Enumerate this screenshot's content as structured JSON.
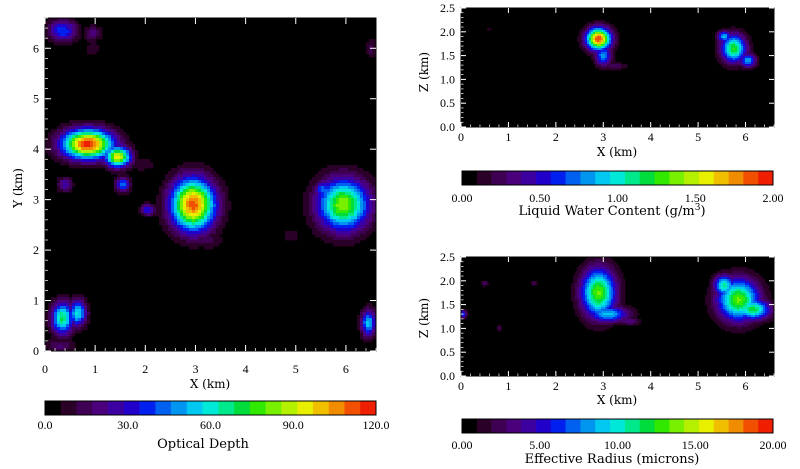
{
  "colormap": [
    "#000000",
    "#2a0028",
    "#3d0052",
    "#4a007a",
    "#3c00a0",
    "#2200cc",
    "#0020f0",
    "#0060f0",
    "#0096f0",
    "#00c8f0",
    "#00e8d8",
    "#00e88c",
    "#00dc3c",
    "#30e800",
    "#78f000",
    "#b4f000",
    "#e8f000",
    "#f0c000",
    "#f08c00",
    "#f05000",
    "#f01e00"
  ],
  "chart_data": [
    {
      "id": "optical_depth",
      "type": "heatmap",
      "xlabel": "X (km)",
      "ylabel": "Y (km)",
      "xlim": [
        0,
        6.6
      ],
      "ylim": [
        0,
        6.6
      ],
      "xticks": [
        "0",
        "1",
        "2",
        "3",
        "4",
        "5",
        "6"
      ],
      "yticks": [
        "0",
        "1",
        "2",
        "3",
        "4",
        "5",
        "6"
      ],
      "colorbar_label": "Optical Depth",
      "colorbar_range": [
        0,
        120
      ],
      "colorbar_ticks": [
        "0.0",
        "30.0",
        "60.0",
        "90.0",
        "120.0"
      ],
      "blobs": [
        {
          "x": 0.35,
          "y": 6.35,
          "sx": 0.2,
          "sy": 0.15,
          "v": 40
        },
        {
          "x": 0.95,
          "y": 6.3,
          "sx": 0.12,
          "sy": 0.1,
          "v": 22
        },
        {
          "x": 0.95,
          "y": 6.0,
          "sx": 0.1,
          "sy": 0.1,
          "v": 12
        },
        {
          "x": 0.85,
          "y": 4.1,
          "sx": 0.35,
          "sy": 0.2,
          "v": 118
        },
        {
          "x": 1.45,
          "y": 3.85,
          "sx": 0.18,
          "sy": 0.14,
          "v": 95
        },
        {
          "x": 1.55,
          "y": 3.3,
          "sx": 0.1,
          "sy": 0.1,
          "v": 45
        },
        {
          "x": 0.4,
          "y": 3.3,
          "sx": 0.1,
          "sy": 0.1,
          "v": 28
        },
        {
          "x": 2.95,
          "y": 2.9,
          "sx": 0.3,
          "sy": 0.35,
          "v": 112
        },
        {
          "x": 2.7,
          "y": 2.7,
          "sx": 0.18,
          "sy": 0.2,
          "v": 50
        },
        {
          "x": 2.05,
          "y": 2.8,
          "sx": 0.1,
          "sy": 0.08,
          "v": 35
        },
        {
          "x": 5.95,
          "y": 2.9,
          "sx": 0.35,
          "sy": 0.35,
          "v": 85
        },
        {
          "x": 5.55,
          "y": 3.2,
          "sx": 0.12,
          "sy": 0.12,
          "v": 45
        },
        {
          "x": 5.7,
          "y": 2.5,
          "sx": 0.18,
          "sy": 0.12,
          "v": 25
        },
        {
          "x": 0.35,
          "y": 0.65,
          "sx": 0.15,
          "sy": 0.22,
          "v": 70
        },
        {
          "x": 0.65,
          "y": 0.75,
          "sx": 0.12,
          "sy": 0.18,
          "v": 60
        },
        {
          "x": 0.3,
          "y": 0.1,
          "sx": 0.2,
          "sy": 0.1,
          "v": 18
        },
        {
          "x": 6.45,
          "y": 0.55,
          "sx": 0.1,
          "sy": 0.18,
          "v": 55
        },
        {
          "x": 6.5,
          "y": 6.0,
          "sx": 0.06,
          "sy": 0.15,
          "v": 14
        },
        {
          "x": 1.9,
          "y": 3.7,
          "sx": 0.25,
          "sy": 0.1,
          "v": 10
        },
        {
          "x": 3.25,
          "y": 2.2,
          "sx": 0.2,
          "sy": 0.12,
          "v": 14
        },
        {
          "x": 4.9,
          "y": 2.3,
          "sx": 0.15,
          "sy": 0.1,
          "v": 9
        }
      ]
    },
    {
      "id": "liquid_water_content",
      "type": "heatmap",
      "xlabel": "X (km)",
      "ylabel": "Z (km)",
      "xlim": [
        0,
        6.6
      ],
      "ylim": [
        0,
        2.5
      ],
      "xticks": [
        "0",
        "1",
        "2",
        "3",
        "4",
        "5",
        "6"
      ],
      "yticks": [
        "0.0",
        "0.5",
        "1.0",
        "1.5",
        "2.0",
        "2.5"
      ],
      "colorbar_label_prefix": "Liquid Water Content (g/m",
      "colorbar_label_sup": "3",
      "colorbar_label_suffix": ")",
      "colorbar_range": [
        0,
        2
      ],
      "colorbar_ticks": [
        "0.00",
        "0.50",
        "1.00",
        "1.50",
        "2.00"
      ],
      "blobs": [
        {
          "x": 2.9,
          "y": 1.85,
          "sx": 0.18,
          "sy": 0.16,
          "v": 1.9
        },
        {
          "x": 3.0,
          "y": 1.5,
          "sx": 0.12,
          "sy": 0.15,
          "v": 0.8
        },
        {
          "x": 3.25,
          "y": 1.28,
          "sx": 0.2,
          "sy": 0.05,
          "v": 0.25
        },
        {
          "x": 5.75,
          "y": 1.65,
          "sx": 0.18,
          "sy": 0.2,
          "v": 1.25
        },
        {
          "x": 5.55,
          "y": 1.9,
          "sx": 0.1,
          "sy": 0.08,
          "v": 0.9
        },
        {
          "x": 6.05,
          "y": 1.4,
          "sx": 0.12,
          "sy": 0.1,
          "v": 0.85
        },
        {
          "x": 0.6,
          "y": 2.05,
          "sx": 0.04,
          "sy": 0.03,
          "v": 0.15
        }
      ]
    },
    {
      "id": "effective_radius",
      "type": "heatmap",
      "xlabel": "X (km)",
      "ylabel": "Z (km)",
      "xlim": [
        0,
        6.6
      ],
      "ylim": [
        0,
        2.5
      ],
      "xticks": [
        "0",
        "1",
        "2",
        "3",
        "4",
        "5",
        "6"
      ],
      "yticks": [
        "0.0",
        "0.5",
        "1.0",
        "1.5",
        "2.0",
        "2.5"
      ],
      "colorbar_label": "Effective Radius (microns)",
      "colorbar_range": [
        0,
        20
      ],
      "colorbar_ticks": [
        "0.00",
        "5.00",
        "10.00",
        "15.00",
        "20.00"
      ],
      "blobs": [
        {
          "x": 2.9,
          "y": 1.75,
          "sx": 0.25,
          "sy": 0.35,
          "v": 13.5
        },
        {
          "x": 3.1,
          "y": 1.3,
          "sx": 0.3,
          "sy": 0.12,
          "v": 9
        },
        {
          "x": 3.55,
          "y": 1.15,
          "sx": 0.15,
          "sy": 0.05,
          "v": 4
        },
        {
          "x": 5.85,
          "y": 1.6,
          "sx": 0.3,
          "sy": 0.3,
          "v": 13.5
        },
        {
          "x": 6.15,
          "y": 1.4,
          "sx": 0.25,
          "sy": 0.15,
          "v": 12
        },
        {
          "x": 5.55,
          "y": 1.9,
          "sx": 0.15,
          "sy": 0.15,
          "v": 11
        },
        {
          "x": 0.03,
          "y": 1.3,
          "sx": 0.06,
          "sy": 0.06,
          "v": 7
        },
        {
          "x": 0.5,
          "y": 1.95,
          "sx": 0.05,
          "sy": 0.04,
          "v": 3
        },
        {
          "x": 1.55,
          "y": 1.95,
          "sx": 0.05,
          "sy": 0.04,
          "v": 2.5
        },
        {
          "x": 0.8,
          "y": 1.0,
          "sx": 0.04,
          "sy": 0.04,
          "v": 3
        }
      ]
    }
  ]
}
